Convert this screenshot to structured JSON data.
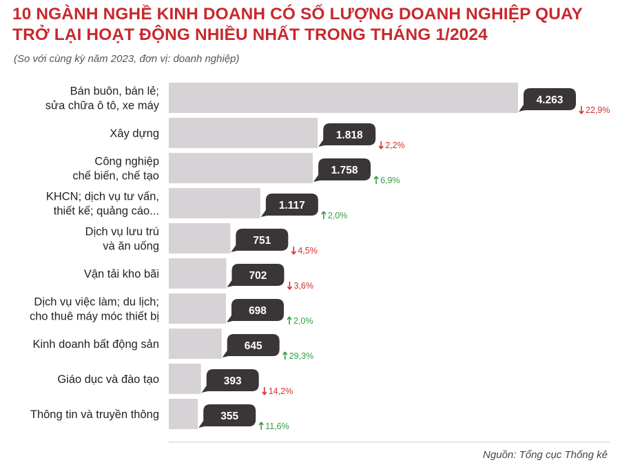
{
  "title": "10 NGÀNH NGHỀ KINH DOANH CÓ SỐ LƯỢNG DOANH NGHIỆP QUAY TRỞ LẠI HOẠT ĐỘNG NHIỀU NHẤT TRONG THÁNG 1/2024",
  "subtitle": "(So với cùng kỳ năm 2023, đơn vị: doanh nghiệp)",
  "source": "Nguồn: Tổng cục Thống kê",
  "colors": {
    "bar": "#d6d2d5",
    "bubble": "#3a3537",
    "up": "#2f9e44",
    "down": "#d62d2d",
    "title": "#c8282d"
  },
  "chart_data": {
    "type": "bar",
    "orientation": "horizontal",
    "categories": [
      [
        "Bán buôn, bán lẻ;",
        "sửa chữa ô tô, xe máy"
      ],
      [
        "Xây dựng"
      ],
      [
        "Công nghiệp",
        "chế biến, chế tạo"
      ],
      [
        "KHCN; dịch vụ tư vấn,",
        "thiết kế; quảng cáo..."
      ],
      [
        "Dịch vụ lưu trú",
        "và ăn uống"
      ],
      [
        "Vận tải kho bãi"
      ],
      [
        "Dịch vụ việc làm; du lịch;",
        "cho thuê máy móc thiết bị"
      ],
      [
        "Kinh doanh bất động sản"
      ],
      [
        "Giáo dục và đào tạo"
      ],
      [
        "Thông tin và truyền thông"
      ]
    ],
    "values": [
      4263,
      1818,
      1758,
      1117,
      751,
      702,
      698,
      645,
      393,
      355
    ],
    "value_labels": [
      "4.263",
      "1.818",
      "1.758",
      "1.117",
      "751",
      "702",
      "698",
      "645",
      "393",
      "355"
    ],
    "changes": [
      "22,9%",
      "2,2%",
      "6,9%",
      "2,0%",
      "4,5%",
      "3,6%",
      "2,0%",
      "29,3%",
      "14,2%",
      "11,6%"
    ],
    "directions": [
      "down",
      "down",
      "up",
      "up",
      "down",
      "down",
      "up",
      "up",
      "down",
      "up"
    ],
    "xlim": [
      0,
      4263
    ]
  }
}
